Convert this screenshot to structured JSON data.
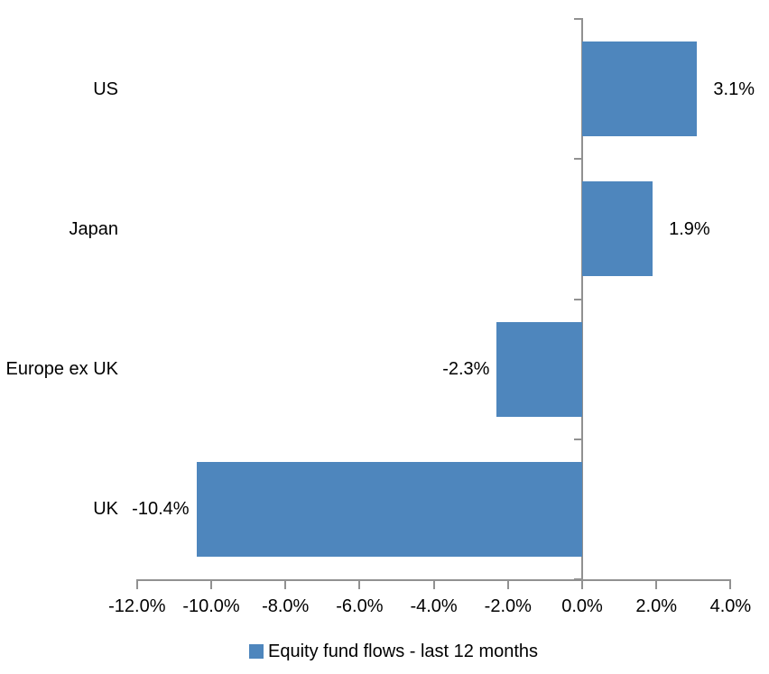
{
  "chart_data": {
    "type": "bar",
    "orientation": "horizontal",
    "title": "",
    "xlabel": "",
    "ylabel": "",
    "categories": [
      "US",
      "Japan",
      "Europe ex UK",
      "UK"
    ],
    "series": [
      {
        "name": "Equity fund flows - last 12 months",
        "values": [
          3.1,
          1.9,
          -2.3,
          -10.4
        ],
        "data_labels": [
          "3.1%",
          "1.9%",
          "-2.3%",
          "-10.4%"
        ]
      }
    ],
    "series_name": "Equity fund flows - last 12 months",
    "xlim": [
      -12,
      4
    ],
    "x_ticks": [
      {
        "value": -12,
        "label": "-12.0%"
      },
      {
        "value": -10,
        "label": "-10.0%"
      },
      {
        "value": -8,
        "label": "-8.0%"
      },
      {
        "value": -6,
        "label": "-6.0%"
      },
      {
        "value": -4,
        "label": "-4.0%"
      },
      {
        "value": -2,
        "label": "-2.0%"
      },
      {
        "value": 0,
        "label": "0.0%"
      },
      {
        "value": 2,
        "label": "2.0%"
      },
      {
        "value": 4,
        "label": "4.0%"
      }
    ],
    "grid": false,
    "legend_position": "bottom",
    "bar_color": "#4E86BD",
    "axis_color": "#919191",
    "text_color": "#000000"
  }
}
